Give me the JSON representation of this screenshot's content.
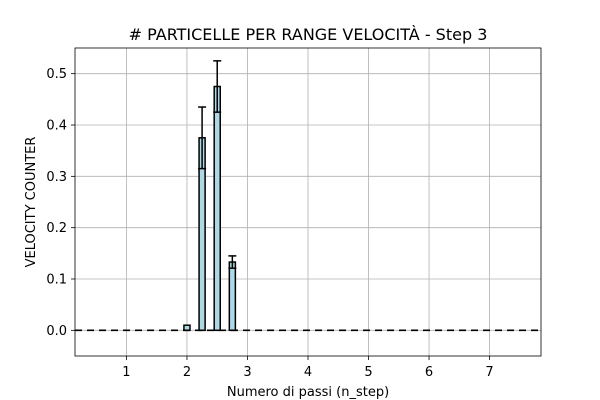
{
  "chart_data": {
    "type": "bar",
    "title": "# PARTICELLE PER RANGE VELOCITÀ - Step 3",
    "xlabel": "Numero di passi (n_step)",
    "ylabel": "VELOCITY COUNTER",
    "xlim": [
      0.15,
      7.85
    ],
    "ylim": [
      -0.05,
      0.55
    ],
    "x_ticks": [
      1,
      2,
      3,
      4,
      5,
      6,
      7
    ],
    "y_ticks": [
      0.0,
      0.1,
      0.2,
      0.3,
      0.4,
      0.5
    ],
    "y_tick_labels": [
      "0.0",
      "0.1",
      "0.2",
      "0.3",
      "0.4",
      "0.5"
    ],
    "grid": true,
    "bar_width": 0.1,
    "bar_color": "#add8e6",
    "edge_color": "#000000",
    "bars": [
      {
        "x": 2.0,
        "value": 0.01,
        "error": 0.0
      },
      {
        "x": 2.25,
        "value": 0.375,
        "error": 0.06
      },
      {
        "x": 2.5,
        "value": 0.475,
        "error": 0.05
      },
      {
        "x": 2.75,
        "value": 0.133,
        "error": 0.012
      }
    ],
    "dashed_line": {
      "y": 0.0,
      "x_range": [
        0.15,
        7.85
      ],
      "color": "#000000"
    }
  }
}
